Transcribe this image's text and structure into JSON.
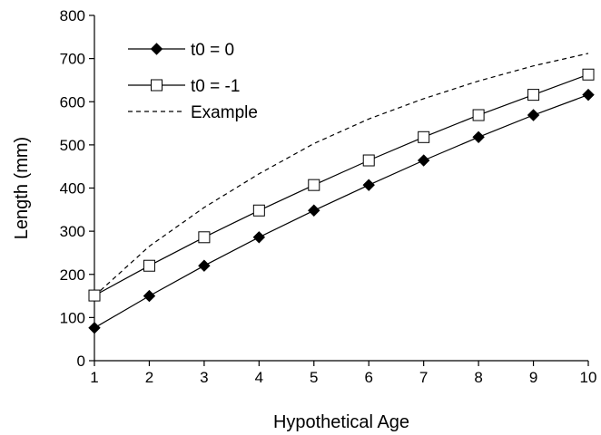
{
  "chart_data": {
    "type": "line",
    "xlabel": "Hypothetical Age",
    "ylabel": "Length (mm)",
    "xlim": [
      1,
      10
    ],
    "ylim": [
      0,
      800
    ],
    "x_ticks": [
      1,
      2,
      3,
      4,
      5,
      6,
      7,
      8,
      9,
      10
    ],
    "y_ticks": [
      0,
      100,
      200,
      300,
      400,
      500,
      600,
      700,
      800
    ],
    "grid": false,
    "legend_position": "top-left",
    "x": [
      1,
      2,
      3,
      4,
      5,
      6,
      7,
      8,
      9,
      10
    ],
    "series": [
      {
        "name": "t0 = 0",
        "marker": "filled-diamond",
        "line": "solid",
        "color": "#000000",
        "values": [
          76,
          150,
          220,
          286,
          348,
          407,
          464,
          518,
          569,
          616
        ]
      },
      {
        "name": "t0 = -1",
        "marker": "open-square",
        "line": "solid",
        "color": "#000000",
        "values": [
          151,
          220,
          286,
          348,
          407,
          464,
          518,
          569,
          616,
          663
        ]
      },
      {
        "name": "Example",
        "marker": "none",
        "line": "dashed",
        "color": "#000000",
        "values": [
          150,
          265,
          355,
          433,
          503,
          560,
          607,
          648,
          683,
          712
        ]
      }
    ]
  }
}
